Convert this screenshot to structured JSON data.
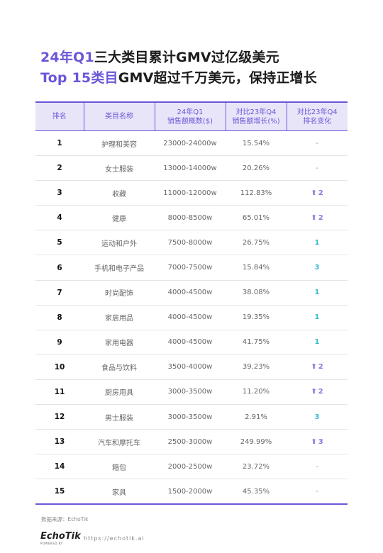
{
  "title": {
    "line1_accent": "24年Q1",
    "line1_rest": "三大类目累计GMV过亿级美元",
    "line2_accent": "Top 15类目",
    "line2_rest": "GMV超过千万美元，保持正增长"
  },
  "table": {
    "headers": {
      "rank": "排名",
      "category": "类目名称",
      "sales_l1": "24年Q1",
      "sales_l2": "销售额概数($)",
      "growth_l1": "对比23年Q4",
      "growth_l2": "销售额增长(%)",
      "change_l1": "对比23年Q4",
      "change_l2": "排名变化"
    },
    "rows": [
      {
        "rank": "1",
        "category": "护理和美容",
        "sales": "23000-24000w",
        "growth": "15.54%",
        "change_type": "dash",
        "change": "-"
      },
      {
        "rank": "2",
        "category": "女士服装",
        "sales": "13000-14000w",
        "growth": "20.26%",
        "change_type": "dash",
        "change": "-"
      },
      {
        "rank": "3",
        "category": "收藏",
        "sales": "11000-12000w",
        "growth": "112.83%",
        "change_type": "up",
        "change": "2"
      },
      {
        "rank": "4",
        "category": "健康",
        "sales": "8000-8500w",
        "growth": "65.01%",
        "change_type": "up",
        "change": "2"
      },
      {
        "rank": "5",
        "category": "运动和户外",
        "sales": "7500-8000w",
        "growth": "26.75%",
        "change_type": "new",
        "change": "1"
      },
      {
        "rank": "6",
        "category": "手机和电子产品",
        "sales": "7000-7500w",
        "growth": "15.84%",
        "change_type": "new",
        "change": "3"
      },
      {
        "rank": "7",
        "category": "时尚配饰",
        "sales": "4000-4500w",
        "growth": "38.08%",
        "change_type": "new",
        "change": "1"
      },
      {
        "rank": "8",
        "category": "家居用品",
        "sales": "4000-4500w",
        "growth": "19.35%",
        "change_type": "new",
        "change": "1"
      },
      {
        "rank": "9",
        "category": "家用电器",
        "sales": "4000-4500w",
        "growth": "41.75%",
        "change_type": "new",
        "change": "1"
      },
      {
        "rank": "10",
        "category": "食品与饮料",
        "sales": "3500-4000w",
        "growth": "39.23%",
        "change_type": "up",
        "change": "2"
      },
      {
        "rank": "11",
        "category": "厨房用具",
        "sales": "3000-3500w",
        "growth": "11.20%",
        "change_type": "up",
        "change": "2"
      },
      {
        "rank": "12",
        "category": "男士服装",
        "sales": "3000-3500w",
        "growth": "2.91%",
        "change_type": "new",
        "change": "3"
      },
      {
        "rank": "13",
        "category": "汽车和摩托车",
        "sales": "2500-3000w",
        "growth": "249.99%",
        "change_type": "up",
        "change": "3"
      },
      {
        "rank": "14",
        "category": "箱包",
        "sales": "2000-2500w",
        "growth": "23.72%",
        "change_type": "dash",
        "change": "-"
      },
      {
        "rank": "15",
        "category": "家具",
        "sales": "1500-2000w",
        "growth": "45.35%",
        "change_type": "dash",
        "change": "-"
      }
    ]
  },
  "footer": {
    "source": "数据来源：EchoTik",
    "logo": "EchoTik",
    "logo_sub": "POWERED BY",
    "site": "https://echotik.ai"
  },
  "colors": {
    "accent": "#6a57d8",
    "header_bg": "#e9e5f9",
    "rank_up": "#8a7ae0",
    "rank_new": "#34b9d1"
  }
}
